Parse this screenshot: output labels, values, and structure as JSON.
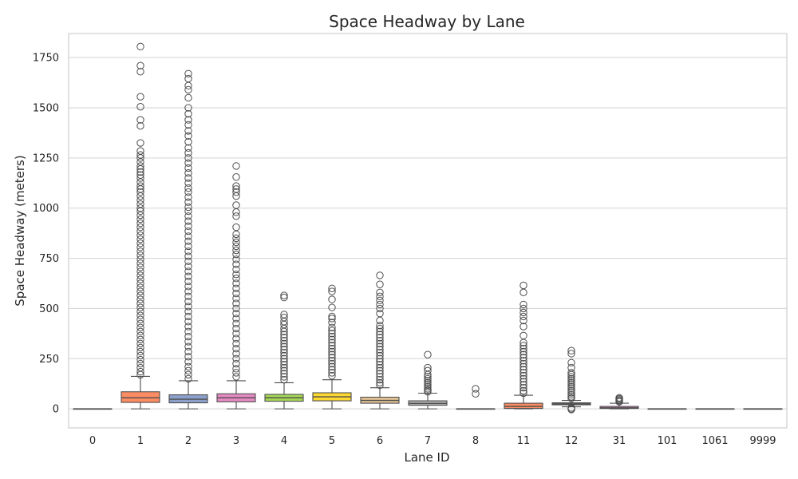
{
  "chart_data": {
    "type": "box",
    "title": "Space Headway by Lane",
    "xlabel": "Lane ID",
    "ylabel": "Space Headway (meters)",
    "ylim": [
      -95,
      1870
    ],
    "yticks": [
      0,
      250,
      500,
      750,
      1000,
      1250,
      1500,
      1750
    ],
    "grid": true,
    "categories": [
      "0",
      "1",
      "2",
      "3",
      "4",
      "5",
      "6",
      "7",
      "8",
      "11",
      "12",
      "31",
      "101",
      "1061",
      "9999"
    ],
    "colors": [
      "#66c2a5",
      "#fc8d62",
      "#8da0cb",
      "#e78ac3",
      "#a6d854",
      "#ffd92f",
      "#e5c494",
      "#b3b3b3",
      "#66c2a5",
      "#fc8d62",
      "#8da0cb",
      "#e78ac3",
      "#a6d854",
      "#ffd92f",
      "#e5c494"
    ],
    "boxes": [
      {
        "lane": "0",
        "whisker_low": 0,
        "q1": 0,
        "median": 0,
        "q3": 0,
        "whisker_high": 0,
        "outliers": []
      },
      {
        "lane": "1",
        "whisker_low": 0,
        "q1": 32,
        "median": 55,
        "q3": 85,
        "whisker_high": 162,
        "outliers": [
          1805,
          1710,
          1680,
          1555,
          1505,
          1440,
          1410,
          1325,
          1285,
          1265,
          1250,
          1230,
          1210,
          1195,
          1180,
          1165,
          1150,
          1130,
          1110,
          1095,
          1080,
          1060,
          1040,
          1020,
          1000,
          985,
          965,
          945,
          925,
          905,
          885,
          865,
          845,
          825,
          805,
          785,
          765,
          745,
          725,
          705,
          685,
          665,
          645,
          625,
          605,
          585,
          565,
          545,
          525,
          505,
          485,
          465,
          445,
          425,
          405,
          385,
          365,
          345,
          325,
          305,
          285,
          265,
          245,
          225,
          205,
          185,
          170
        ]
      },
      {
        "lane": "2",
        "whisker_low": 0,
        "q1": 30,
        "median": 48,
        "q3": 70,
        "whisker_high": 140,
        "outliers": [
          1670,
          1645,
          1610,
          1590,
          1550,
          1500,
          1470,
          1440,
          1415,
          1385,
          1360,
          1330,
          1300,
          1275,
          1250,
          1225,
          1200,
          1175,
          1150,
          1125,
          1100,
          1080,
          1055,
          1030,
          1005,
          985,
          960,
          935,
          910,
          885,
          860,
          835,
          810,
          785,
          760,
          735,
          710,
          685,
          660,
          635,
          610,
          585,
          560,
          535,
          510,
          485,
          460,
          435,
          410,
          385,
          360,
          335,
          310,
          285,
          260,
          235,
          210,
          190,
          170,
          150
        ]
      },
      {
        "lane": "3",
        "whisker_low": 0,
        "q1": 35,
        "median": 55,
        "q3": 75,
        "whisker_high": 140,
        "outliers": [
          1210,
          1155,
          1110,
          1095,
          1080,
          1060,
          1015,
          980,
          960,
          905,
          870,
          850,
          830,
          810,
          790,
          770,
          745,
          720,
          695,
          670,
          650,
          625,
          600,
          575,
          550,
          525,
          500,
          475,
          450,
          425,
          400,
          375,
          350,
          325,
          300,
          275,
          250,
          225,
          200,
          180,
          160
        ]
      },
      {
        "lane": "4",
        "whisker_low": 0,
        "q1": 38,
        "median": 55,
        "q3": 72,
        "whisker_high": 130,
        "outliers": [
          565,
          555,
          470,
          455,
          435,
          420,
          400,
          385,
          370,
          355,
          340,
          325,
          310,
          295,
          280,
          265,
          250,
          235,
          220,
          205,
          190,
          175,
          160,
          145
        ]
      },
      {
        "lane": "5",
        "whisker_low": 0,
        "q1": 40,
        "median": 60,
        "q3": 80,
        "whisker_high": 145,
        "outliers": [
          600,
          585,
          545,
          505,
          460,
          450,
          430,
          405,
          390,
          375,
          360,
          345,
          330,
          315,
          300,
          285,
          270,
          255,
          240,
          225,
          210,
          195,
          180,
          165
        ]
      },
      {
        "lane": "6",
        "whisker_low": 0,
        "q1": 28,
        "median": 42,
        "q3": 58,
        "whisker_high": 105,
        "outliers": [
          665,
          620,
          580,
          560,
          540,
          520,
          500,
          475,
          440,
          415,
          400,
          385,
          370,
          355,
          340,
          325,
          310,
          295,
          280,
          265,
          250,
          235,
          220,
          205,
          190,
          175,
          160,
          145,
          130,
          118
        ]
      },
      {
        "lane": "7",
        "whisker_low": 0,
        "q1": 18,
        "median": 27,
        "q3": 40,
        "whisker_high": 78,
        "outliers": [
          270,
          205,
          190,
          170,
          160,
          150,
          140,
          130,
          120,
          110,
          100,
          92,
          85
        ]
      },
      {
        "lane": "8",
        "whisker_low": 0,
        "q1": 0,
        "median": 0,
        "q3": 0,
        "whisker_high": 0,
        "outliers": [
          100,
          75
        ]
      },
      {
        "lane": "11",
        "whisker_low": 0,
        "q1": 2,
        "median": 12,
        "q3": 28,
        "whisker_high": 68,
        "outliers": [
          615,
          580,
          520,
          500,
          480,
          460,
          440,
          410,
          365,
          330,
          315,
          300,
          285,
          270,
          255,
          240,
          225,
          210,
          195,
          180,
          165,
          150,
          135,
          120,
          105,
          90,
          78
        ]
      },
      {
        "lane": "12",
        "whisker_low": 10,
        "q1": 20,
        "median": 25,
        "q3": 30,
        "whisker_high": 42,
        "outliers": [
          290,
          275,
          230,
          205,
          180,
          170,
          160,
          150,
          140,
          130,
          120,
          110,
          100,
          90,
          80,
          70,
          60,
          52,
          5,
          0,
          -3
        ]
      },
      {
        "lane": "31",
        "whisker_low": 0,
        "q1": 2,
        "median": 5,
        "q3": 12,
        "whisker_high": 28,
        "outliers": [
          55,
          50,
          45,
          40,
          35
        ]
      },
      {
        "lane": "101",
        "whisker_low": 0,
        "q1": 0,
        "median": 0,
        "q3": 0,
        "whisker_high": 0,
        "outliers": []
      },
      {
        "lane": "1061",
        "whisker_low": 0,
        "q1": 0,
        "median": 0,
        "q3": 0,
        "whisker_high": 0,
        "outliers": []
      },
      {
        "lane": "9999",
        "whisker_low": 0,
        "q1": 0,
        "median": 0,
        "q3": 0,
        "whisker_high": 0,
        "outliers": []
      }
    ]
  }
}
